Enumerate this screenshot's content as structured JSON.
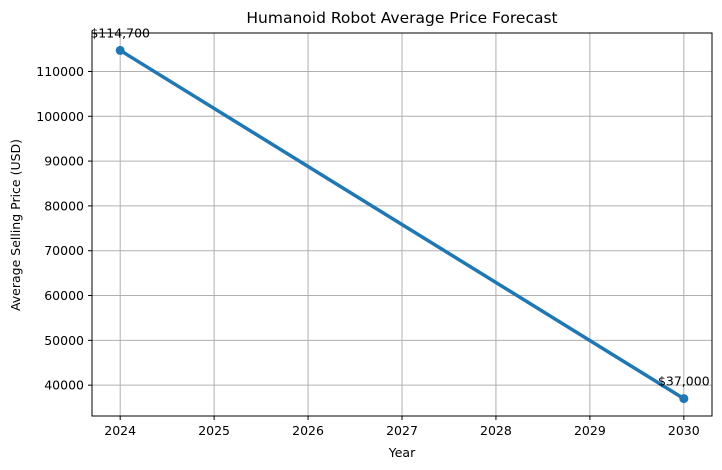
{
  "chart_data": {
    "type": "line",
    "title": "Humanoid Robot Average Price Forecast",
    "xlabel": "Year",
    "ylabel": "Average Selling Price (USD)",
    "x": [
      2024,
      2030
    ],
    "series": [
      {
        "values": [
          114700,
          37000
        ],
        "color": "#1f77b4",
        "data_labels": [
          "$114,700",
          "$37,000"
        ]
      }
    ],
    "xticks": [
      2024,
      2025,
      2026,
      2027,
      2028,
      2029,
      2030
    ],
    "yticks": [
      40000,
      50000,
      60000,
      70000,
      80000,
      90000,
      100000,
      110000
    ],
    "xtick_labels": [
      "2024",
      "2025",
      "2026",
      "2027",
      "2028",
      "2029",
      "2030"
    ],
    "ytick_labels": [
      "40000",
      "50000",
      "60000",
      "70000",
      "80000",
      "90000",
      "100000",
      "110000"
    ],
    "xlim": [
      2023.7,
      2030.3
    ],
    "ylim": [
      33115,
      118585
    ],
    "grid": true,
    "legend": false
  }
}
